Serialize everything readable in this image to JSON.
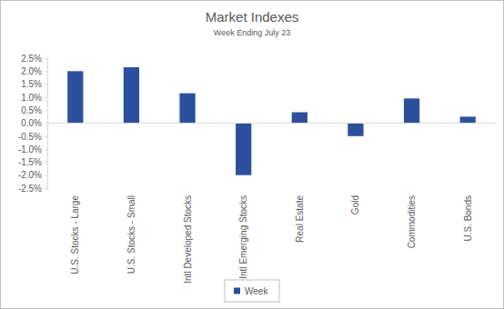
{
  "chart_data": {
    "type": "bar",
    "title": "Market Indexes",
    "subtitle": "Week Ending July 23",
    "categories": [
      "U.S. Stocks - Large",
      "U.S. Stocks - Small",
      "Intl Developed Stocks",
      "Intl Emerging Stocks",
      "Real Estate",
      "Gold",
      "Commodities",
      "U.S. Bonds"
    ],
    "series": [
      {
        "name": "Week",
        "color": "#2d509d",
        "values": [
          2.0,
          2.15,
          1.15,
          -2.0,
          0.42,
          -0.5,
          0.95,
          0.25
        ]
      }
    ],
    "ylim": [
      -2.5,
      2.5
    ],
    "yticks": [
      {
        "value": 2.5,
        "label": "2.5%"
      },
      {
        "value": 2.0,
        "label": "2.0%"
      },
      {
        "value": 1.5,
        "label": "1.5%"
      },
      {
        "value": 1.0,
        "label": "1.0%"
      },
      {
        "value": 0.5,
        "label": "0.5%"
      },
      {
        "value": 0,
        "label": "0.0%"
      },
      {
        "value": -0.5,
        "label": "-0.5%"
      },
      {
        "value": -1.0,
        "label": "-1.0%"
      },
      {
        "value": -1.5,
        "label": "-1.5%"
      },
      {
        "value": -2.0,
        "label": "-2.0%"
      },
      {
        "value": -2.5,
        "label": "-2.5%"
      }
    ],
    "grid": false,
    "legend": "bottom"
  }
}
